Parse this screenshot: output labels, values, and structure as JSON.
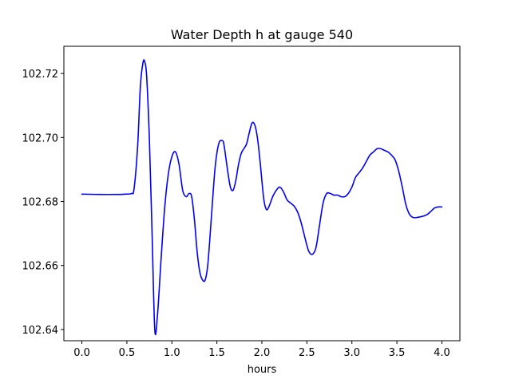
{
  "chart_data": {
    "type": "line",
    "title": "Water Depth h at gauge 540",
    "xlabel": "hours",
    "ylabel": "",
    "xlim": [
      -0.2,
      4.2
    ],
    "ylim": [
      102.6365,
      102.7285
    ],
    "x_ticks": [
      "0.0",
      "0.5",
      "1.0",
      "1.5",
      "2.0",
      "2.5",
      "3.0",
      "3.5",
      "4.0"
    ],
    "y_ticks": [
      "102.64",
      "102.66",
      "102.68",
      "102.70",
      "102.72"
    ],
    "grid": false,
    "line_color": "#0000ff",
    "series": [
      {
        "x": [
          0.0,
          0.2,
          0.4,
          0.48,
          0.55,
          0.58,
          0.62,
          0.65,
          0.68,
          0.7,
          0.72,
          0.75,
          0.78,
          0.81,
          0.84,
          0.88,
          0.92,
          0.96,
          1.0,
          1.04,
          1.08,
          1.12,
          1.16,
          1.19,
          1.22,
          1.25,
          1.28,
          1.31,
          1.34,
          1.37,
          1.4,
          1.44,
          1.48,
          1.52,
          1.56,
          1.58,
          1.62,
          1.65,
          1.68,
          1.71,
          1.74,
          1.77,
          1.8,
          1.83,
          1.86,
          1.89,
          1.92,
          1.95,
          1.98,
          2.02,
          2.05,
          2.08,
          2.12,
          2.16,
          2.2,
          2.24,
          2.28,
          2.32,
          2.36,
          2.4,
          2.44,
          2.48,
          2.52,
          2.56,
          2.6,
          2.64,
          2.68,
          2.72,
          2.76,
          2.8,
          2.84,
          2.88,
          2.92,
          2.96,
          3.0,
          3.04,
          3.08,
          3.12,
          3.16,
          3.2,
          3.24,
          3.28,
          3.32,
          3.36,
          3.4,
          3.44,
          3.48,
          3.52,
          3.56,
          3.6,
          3.64,
          3.68,
          3.72,
          3.76,
          3.8,
          3.84,
          3.88,
          3.92,
          3.96,
          4.0
        ],
        "values": [
          102.6823,
          102.6822,
          102.6822,
          102.6823,
          102.6825,
          102.684,
          102.6975,
          102.716,
          102.7235,
          102.7235,
          102.719,
          102.6995,
          102.67,
          102.64,
          102.6445,
          102.662,
          102.678,
          102.6885,
          102.694,
          102.6955,
          102.6915,
          102.6835,
          102.6815,
          102.6825,
          102.6815,
          102.6745,
          102.6645,
          102.658,
          102.6555,
          102.6555,
          102.6605,
          102.6755,
          102.6905,
          102.698,
          102.699,
          102.6975,
          102.6895,
          102.6845,
          102.6835,
          102.6865,
          102.6915,
          102.695,
          102.6965,
          102.698,
          102.7015,
          102.7045,
          102.704,
          102.7,
          102.6925,
          102.681,
          102.6775,
          102.6785,
          102.6815,
          102.6835,
          102.6845,
          102.683,
          102.6805,
          102.6795,
          102.6785,
          102.6765,
          102.673,
          102.6685,
          102.6645,
          102.6635,
          102.6655,
          102.6725,
          102.6795,
          102.6825,
          102.6825,
          102.682,
          102.682,
          102.6815,
          102.6815,
          102.6825,
          102.6845,
          102.6875,
          102.689,
          102.6905,
          102.6925,
          102.6945,
          102.6955,
          102.6965,
          102.6965,
          102.696,
          102.6955,
          102.6945,
          102.693,
          102.6895,
          102.6845,
          102.679,
          102.676,
          102.675,
          102.675,
          102.6752,
          102.6755,
          102.676,
          102.677,
          102.678,
          102.6783,
          102.6783
        ]
      }
    ]
  }
}
